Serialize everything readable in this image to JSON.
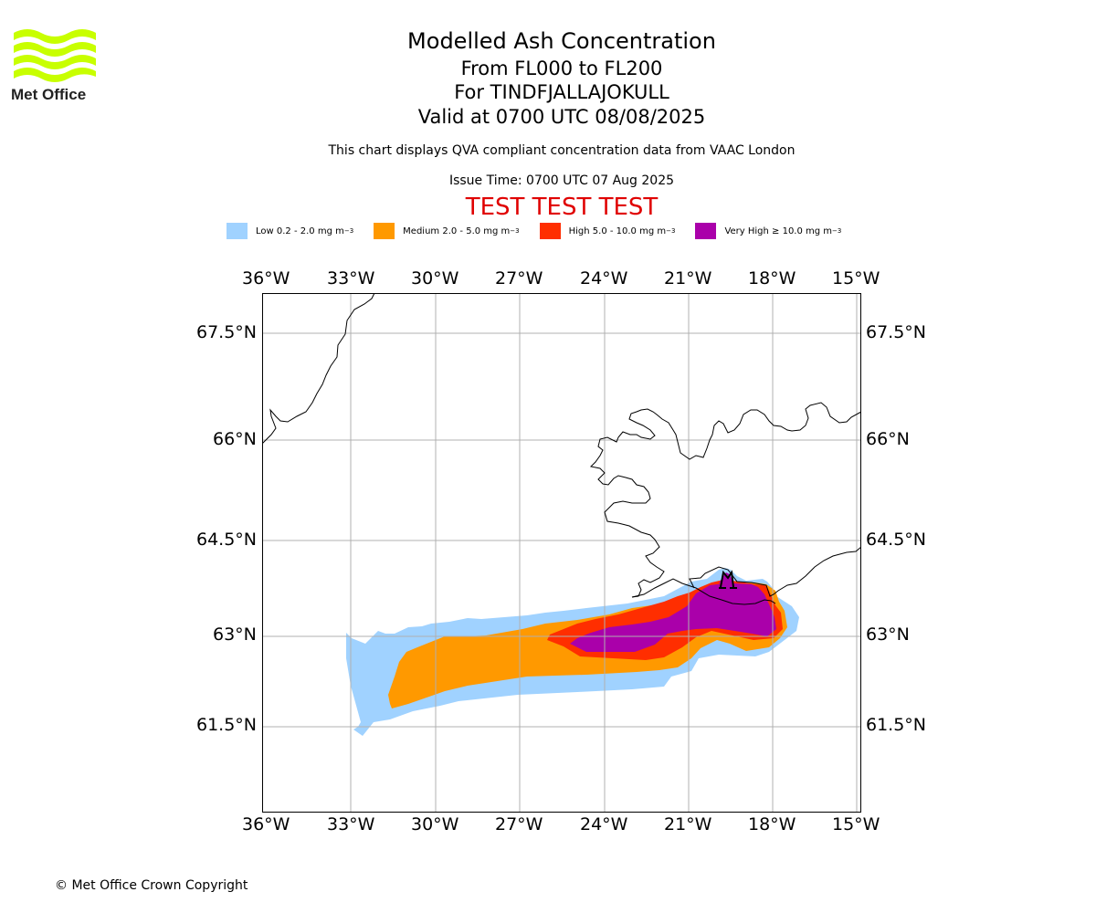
{
  "logo": {
    "text": "Met Office",
    "wave_color": "#c8ff00"
  },
  "header": {
    "title": "Modelled Ash Concentration",
    "subtitle1": "From FL000 to FL200",
    "subtitle2": "For TINDFJALLAJOKULL",
    "subtitle3": "Valid at 0700 UTC 08/08/2025",
    "description": "This chart displays QVA compliant concentration data from VAAC London",
    "issue_time": "Issue Time: 0700 UTC 07 Aug 2025",
    "test_banner": "TEST TEST TEST"
  },
  "legend": [
    {
      "label": "Low 0.2 - 2.0 mg m",
      "sup": "−3",
      "color": "#a0d2ff"
    },
    {
      "label": "Medium 2.0 - 5.0 mg m",
      "sup": "−3",
      "color": "#ff9900"
    },
    {
      "label": "High 5.0 - 10.0 mg m",
      "sup": "−3",
      "color": "#ff2e00"
    },
    {
      "label": "Very High ≥ 10.0 mg m",
      "sup": "−3",
      "color": "#aa00aa"
    }
  ],
  "map": {
    "lon_ticks": [
      "36°W",
      "33°W",
      "30°W",
      "27°W",
      "24°W",
      "21°W",
      "18°W",
      "15°W"
    ],
    "lat_ticks": [
      "67.5°N",
      "66°N",
      "64.5°N",
      "63°N",
      "61.5°N"
    ],
    "grid": true,
    "extent_lon": [
      -36,
      -15
    ],
    "extent_lat": [
      60.3,
      68.1
    ]
  },
  "footer": {
    "copyright": "© Met Office Crown Copyright"
  }
}
